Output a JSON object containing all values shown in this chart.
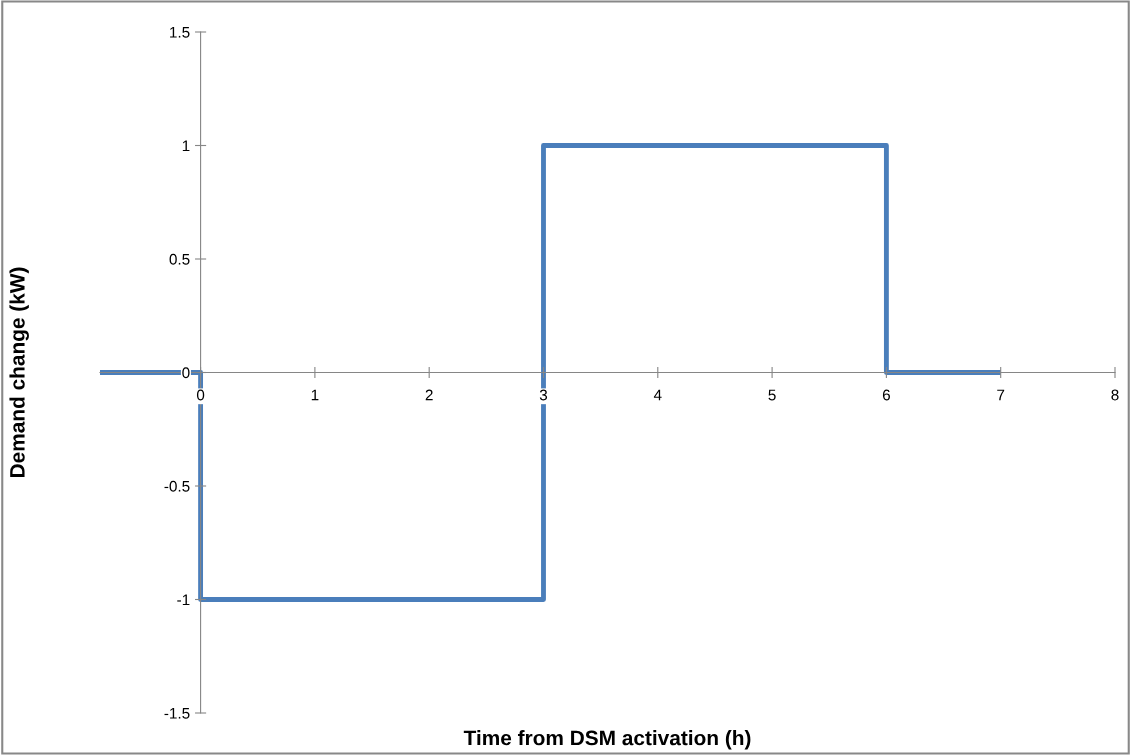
{
  "chart_data": {
    "type": "step",
    "xlabel": "Time from DSM activation (h)",
    "ylabel": "Demand change (kW)",
    "x": [
      -0.88,
      0,
      3,
      6,
      7
    ],
    "series": [
      {
        "color": "#4a7ebb",
        "values": [
          0,
          -1,
          1,
          0,
          0
        ]
      }
    ],
    "xlim": [
      -0.88,
      8
    ],
    "xticks": [
      0,
      1,
      2,
      3,
      4,
      5,
      6,
      7,
      8
    ],
    "ylim": [
      -1.5,
      1.5
    ],
    "yticks": [
      -1.5,
      -1,
      -0.5,
      0,
      0.5,
      1,
      1.5
    ],
    "grid": false,
    "legend": false,
    "marker": "none",
    "line_style": "solid"
  }
}
